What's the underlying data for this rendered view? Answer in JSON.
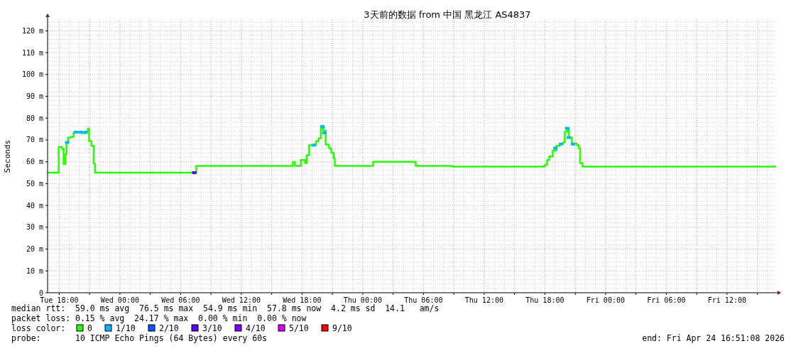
{
  "chart_data": {
    "type": "step",
    "title": "3天前的数据 from 中国 黑龙江 AS4837",
    "ylabel": "Seconds",
    "legend_title": "loss color:",
    "legend": "bottom",
    "grid": true,
    "xlim": [
      "2026-04-21T16:51",
      "2026-04-24T16:51"
    ],
    "xticks": [
      {
        "value": "2026-04-21T18:00",
        "label": "Tue 18:00"
      },
      {
        "value": "2026-04-21T21:00",
        "label": null
      },
      {
        "value": "2026-04-22T00:00",
        "label": "Wed 00:00"
      },
      {
        "value": "2026-04-22T03:00",
        "label": null
      },
      {
        "value": "2026-04-22T06:00",
        "label": "Wed 06:00"
      },
      {
        "value": "2026-04-22T09:00",
        "label": null
      },
      {
        "value": "2026-04-22T12:00",
        "label": "Wed 12:00"
      },
      {
        "value": "2026-04-22T15:00",
        "label": null
      },
      {
        "value": "2026-04-22T18:00",
        "label": "Wed 18:00"
      },
      {
        "value": "2026-04-22T21:00",
        "label": null
      },
      {
        "value": "2026-04-23T00:00",
        "label": "Thu 00:00"
      },
      {
        "value": "2026-04-23T03:00",
        "label": null
      },
      {
        "value": "2026-04-23T06:00",
        "label": "Thu 06:00"
      },
      {
        "value": "2026-04-23T09:00",
        "label": null
      },
      {
        "value": "2026-04-23T12:00",
        "label": "Thu 12:00"
      },
      {
        "value": "2026-04-23T15:00",
        "label": null
      },
      {
        "value": "2026-04-23T18:00",
        "label": "Thu 18:00"
      },
      {
        "value": "2026-04-23T21:00",
        "label": null
      },
      {
        "value": "2026-04-24T00:00",
        "label": "Fri 00:00"
      },
      {
        "value": "2026-04-24T03:00",
        "label": null
      },
      {
        "value": "2026-04-24T06:00",
        "label": "Fri 06:00"
      },
      {
        "value": "2026-04-24T09:00",
        "label": null
      },
      {
        "value": "2026-04-24T12:00",
        "label": "Fri 12:00"
      },
      {
        "value": "2026-04-24T15:00",
        "label": null
      }
    ],
    "ylim": [
      0,
      125
    ],
    "yticks": [
      0,
      {
        "value": 10,
        "label": "10 m"
      },
      {
        "value": 20,
        "label": "20 m"
      },
      {
        "value": 30,
        "label": "30 m"
      },
      {
        "value": 40,
        "label": "40 m"
      },
      {
        "value": 50,
        "label": "50 m"
      },
      {
        "value": 60,
        "label": "60 m"
      },
      {
        "value": 70,
        "label": "70 m"
      },
      {
        "value": 80,
        "label": "80 m"
      },
      {
        "value": 90,
        "label": "90 m"
      },
      {
        "value": 100,
        "label": "100 m"
      },
      {
        "value": 110,
        "label": "110 m"
      },
      {
        "value": 120,
        "label": "120 m"
      }
    ],
    "series": [
      {
        "name": "0",
        "color": "#26ff00",
        "x": [
          "2026-04-21T16:51",
          "2026-04-21T17:57",
          "2026-04-21T18:16",
          "2026-04-21T18:26",
          "2026-04-21T18:37",
          "2026-04-21T18:43",
          "2026-04-21T18:53",
          "2026-04-21T19:12",
          "2026-04-21T19:25",
          "2026-04-21T19:54",
          "2026-04-21T20:15",
          "2026-04-21T20:33",
          "2026-04-21T20:50",
          "2026-04-21T20:57",
          "2026-04-21T21:11",
          "2026-04-21T21:25",
          "2026-04-21T21:32",
          "2026-04-22T07:33",
          "2026-04-22T17:05",
          "2026-04-22T17:18",
          "2026-04-22T17:53",
          "2026-04-22T18:18",
          "2026-04-22T18:28",
          "2026-04-22T18:42",
          "2026-04-22T19:10",
          "2026-04-22T19:24",
          "2026-04-22T19:38",
          "2026-04-22T19:52",
          "2026-04-22T20:06",
          "2026-04-22T20:20",
          "2026-04-22T20:39",
          "2026-04-22T20:53",
          "2026-04-22T21:07",
          "2026-04-22T21:14",
          "2026-04-23T01:01",
          "2026-04-23T05:14",
          "2026-04-23T08:52",
          "2026-04-23T17:59",
          "2026-04-23T18:13",
          "2026-04-23T18:26",
          "2026-04-23T18:47",
          "2026-04-23T19:08",
          "2026-04-23T19:29",
          "2026-04-23T19:48",
          "2026-04-23T19:58",
          "2026-04-23T20:12",
          "2026-04-23T20:22",
          "2026-04-23T20:40",
          "2026-04-23T21:08",
          "2026-04-23T21:22",
          "2026-04-23T21:29",
          "2026-04-23T21:43",
          "2026-04-24T16:51"
        ],
        "values": [
          55.0,
          66.8,
          65.9,
          58.9,
          63.5,
          68.7,
          71.1,
          71.4,
          73.3,
          73.5,
          73.1,
          73.7,
          75.2,
          69.5,
          67.3,
          59.2,
          55.0,
          58.1,
          59.9,
          58.1,
          60.8,
          59.4,
          63.0,
          67.6,
          67.9,
          69.5,
          70.8,
          76.5,
          74.4,
          67.9,
          66.2,
          64.1,
          61.6,
          58.1,
          60.0,
          58.1,
          57.8,
          58.6,
          60.8,
          62.4,
          65.1,
          67.3,
          68.1,
          68.9,
          73.8,
          75.4,
          71.1,
          68.4,
          67.6,
          66.2,
          59.4,
          57.8,
          57.8
        ]
      },
      {
        "name": "1/10",
        "type": "scatter",
        "marker": "square",
        "color": "#00b8ff",
        "x": [
          "2026-04-21T18:47",
          "2026-04-21T19:40",
          "2026-04-21T20:08",
          "2026-04-21T20:36",
          "2026-04-22T19:10",
          "2026-04-22T20:02",
          "2026-04-22T20:13",
          "2026-04-23T19:02",
          "2026-04-23T19:34",
          "2026-04-23T20:12",
          "2026-04-23T20:22",
          "2026-04-23T20:47"
        ],
        "values": [
          68.9,
          73.6,
          73.6,
          73.5,
          67.6,
          76.0,
          73.3,
          66.2,
          68.1,
          75.3,
          71.1,
          68.1
        ]
      },
      {
        "name": "2/10",
        "type": "scatter",
        "color": "#0059ff"
      },
      {
        "name": "3/10",
        "type": "scatter",
        "marker": "square",
        "color": "#5e00ff",
        "x": [
          "2026-04-22T07:21"
        ],
        "values": [
          55.0
        ]
      },
      {
        "name": "4/10",
        "type": "scatter",
        "color": "#7e00ff"
      },
      {
        "name": "5/10",
        "type": "scatter",
        "color": "#dd00ff"
      },
      {
        "name": "9/10",
        "type": "scatter",
        "color": "#ff0000"
      }
    ],
    "annotations": [
      "median rtt:  59.0 ms avg  76.5 ms max  54.9 ms min  57.8 ms now  4.2 ms sd  14.1   am/s",
      "packet loss: 0.15 % avg  24.17 % max  0.00 % min  0.00 % now",
      "probe:       10 ICMP Echo Pings (64 Bytes) every 60s",
      "end: Fri Apr 24 16:51:08 2026"
    ]
  }
}
